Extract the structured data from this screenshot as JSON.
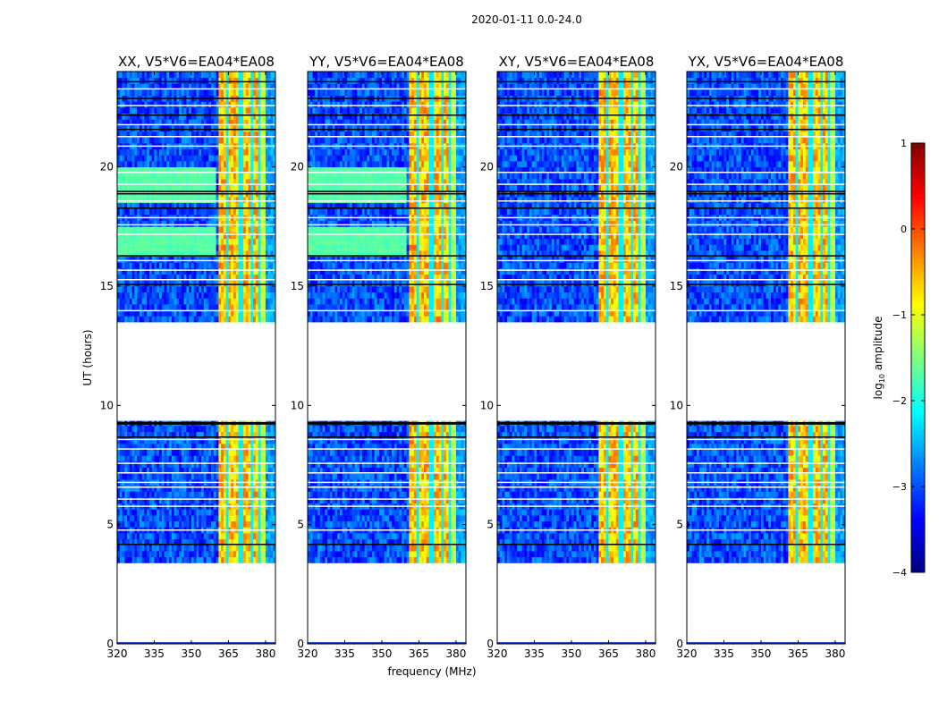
{
  "chart_data": {
    "type": "heatmap",
    "title": "2020-01-11 0.0-24.0",
    "xlabel": "frequency (MHz)",
    "ylabel": "UT (hours)",
    "xlim": [
      320,
      384
    ],
    "ylim": [
      0,
      24
    ],
    "xticks": [
      "320",
      "335",
      "350",
      "365",
      "380"
    ],
    "xtick_values": [
      320,
      335,
      350,
      365,
      380
    ],
    "yticks": [
      "0",
      "5",
      "10",
      "15",
      "20"
    ],
    "ytick_values": [
      0,
      5,
      10,
      15,
      20
    ],
    "panels": [
      {
        "title": "XX, V5*V6=EA04*EA08",
        "pol": "XX",
        "green_blocks": true
      },
      {
        "title": "YY, V5*V6=EA04*EA08",
        "pol": "YY",
        "green_blocks": true
      },
      {
        "title": "XY, V5*V6=EA04*EA08",
        "pol": "XY",
        "green_blocks": false
      },
      {
        "title": "YX, V5*V6=EA04*EA08",
        "pol": "YX",
        "green_blocks": false
      }
    ],
    "data_time_ranges_hours": [
      [
        3.4,
        9.35
      ],
      [
        13.5,
        24
      ]
    ],
    "background_log_amplitude": -3.0,
    "rfi_band_mhz": [
      360.5,
      380.5
    ],
    "rfi_log_amplitude": -0.6,
    "rfi_gap_channels_mhz": [
      364.5,
      370,
      374.5,
      377.5,
      380.5
    ],
    "green_block_hours": [
      [
        16.2,
        17.5
      ],
      [
        18.5,
        19.9
      ]
    ],
    "green_block_log_amplitude": -1.7,
    "flagged_white_hours": [
      23.3,
      22.6,
      21.8,
      21.3,
      20.9,
      19.8,
      19.3,
      18.6,
      17.9,
      17.6,
      17.2,
      16.1,
      15.7,
      15.3,
      14.0,
      8.6,
      8.2,
      7.6,
      7.2,
      6.8,
      6.6,
      6.1,
      5.8,
      4.8
    ],
    "flagged_black_hours": [
      23.6,
      22.9,
      22.2,
      21.6,
      19.0,
      18.9,
      18.3,
      16.3,
      15.1,
      9.3,
      9.25,
      8.7,
      4.2
    ],
    "colorbar": {
      "label_main": "log",
      "label_sub": "10",
      "label_rest": " amplitude",
      "range": [
        -4,
        1
      ],
      "ticks": [
        "1",
        "0",
        "−1",
        "−2",
        "−3",
        "−4"
      ],
      "tick_values": [
        1,
        0,
        -1,
        -2,
        -3,
        -4
      ],
      "colormap": "jet"
    }
  }
}
